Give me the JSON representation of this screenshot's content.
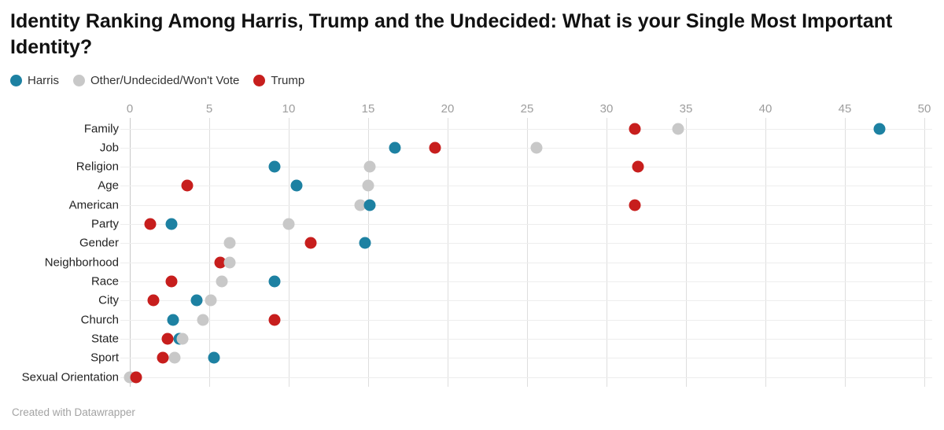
{
  "header": {
    "title": "Identity Ranking Among Harris, Trump and the Undecided: What is your Single Most Important Identity?"
  },
  "legend": [
    {
      "id": "harris",
      "label": "Harris",
      "color": "#1d81a2"
    },
    {
      "id": "other",
      "label": "Other/Undecided/Won't Vote",
      "color": "#c8c8c8"
    },
    {
      "id": "trump",
      "label": "Trump",
      "color": "#c71e1d"
    }
  ],
  "footer": {
    "credit": "Created with Datawrapper"
  },
  "chart_data": {
    "type": "scatter",
    "subtype": "dot-plot",
    "orientation": "horizontal",
    "title": "Identity Ranking Among Harris, Trump and the Undecided: What is your Single Most Important Identity?",
    "xlabel": "",
    "ylabel": "",
    "xlim": [
      0,
      50
    ],
    "xticks": [
      0,
      5,
      10,
      15,
      20,
      25,
      30,
      35,
      40,
      45,
      50
    ],
    "grid": true,
    "legend_position": "top-left",
    "categories": [
      "Family",
      "Job",
      "Religion",
      "Age",
      "American",
      "Party",
      "Gender",
      "Neighborhood",
      "Race",
      "City",
      "Church",
      "State",
      "Sport",
      "Sexual Orientation"
    ],
    "series": [
      {
        "name": "Harris",
        "color": "#1d81a2",
        "values": [
          47.2,
          16.7,
          9.1,
          10.5,
          15.1,
          2.6,
          14.8,
          null,
          9.1,
          4.2,
          2.7,
          3.1,
          5.3,
          null
        ]
      },
      {
        "name": "Other/Undecided/Won't Vote",
        "color": "#c8c8c8",
        "values": [
          34.5,
          25.6,
          15.1,
          15.0,
          14.5,
          10.0,
          6.3,
          6.3,
          5.8,
          5.1,
          4.6,
          3.3,
          2.8,
          0.0
        ]
      },
      {
        "name": "Trump",
        "color": "#c71e1d",
        "values": [
          31.8,
          19.2,
          32.0,
          3.6,
          31.8,
          1.3,
          11.4,
          5.7,
          2.6,
          1.5,
          9.1,
          2.4,
          2.1,
          0.4
        ]
      }
    ]
  }
}
